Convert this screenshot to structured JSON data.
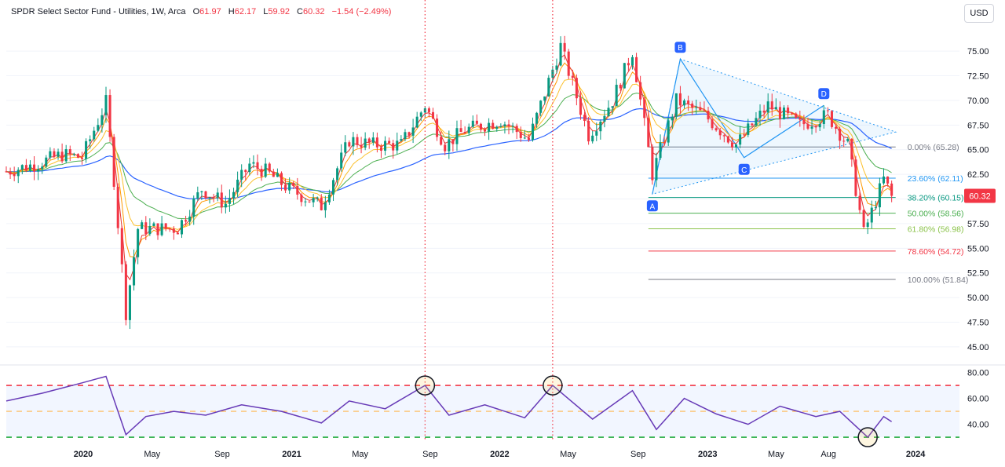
{
  "header": {
    "title": "SPDR Select Sector Fund - Utilities, 1W, Arca",
    "o_label": "O",
    "o_value": "61.97",
    "h_label": "H",
    "h_value": "62.17",
    "l_label": "L",
    "l_value": "59.92",
    "c_label": "C",
    "c_value": "60.32",
    "change": "−1.54 (−2.49%)"
  },
  "currency_button": "USD",
  "last_price_tag": "60.32",
  "colors": {
    "up": "#089981",
    "down": "#f23645",
    "ema": "#2962ff",
    "rsi": "#673ab7",
    "fib_hi": "#2196f3"
  },
  "chart_data": [
    {
      "type": "candlestick",
      "title": "SPDR Select Sector Fund - Utilities, 1W, Arca",
      "y_ticks": [
        "75.00",
        "72.50",
        "70.00",
        "67.50",
        "65.00",
        "62.50",
        "60.00",
        "57.50",
        "55.00",
        "52.50",
        "50.00",
        "47.50",
        "45.00"
      ],
      "ylim": [
        43.4,
        77.8
      ],
      "x_ticks": [
        "2020",
        "May",
        "Sep",
        "2021",
        "May",
        "Sep",
        "2022",
        "May",
        "Sep",
        "2023",
        "May",
        "Aug",
        "2024"
      ],
      "xlim": [
        "2019-08-19",
        "2024-03-18"
      ],
      "close_path": [
        [
          "2019-08-19",
          62.8
        ],
        [
          "2019-10-07",
          63.5
        ],
        [
          "2019-11-25",
          64.5
        ],
        [
          "2019-12-30",
          64.2
        ],
        [
          "2020-02-10",
          69.8
        ],
        [
          "2020-02-24",
          62.0
        ],
        [
          "2020-03-16",
          48.5
        ],
        [
          "2020-04-06",
          57.0
        ],
        [
          "2020-05-18",
          57.0
        ],
        [
          "2020-06-15",
          57.0
        ],
        [
          "2020-07-27",
          61.0
        ],
        [
          "2020-09-07",
          59.5
        ],
        [
          "2020-10-19",
          63.5
        ],
        [
          "2020-11-16",
          62.8
        ],
        [
          "2020-12-28",
          61.0
        ],
        [
          "2021-02-22",
          59.3
        ],
        [
          "2021-04-12",
          66.0
        ],
        [
          "2021-05-24",
          65.5
        ],
        [
          "2021-07-12",
          65.5
        ],
        [
          "2021-08-23",
          69.5
        ],
        [
          "2021-09-27",
          65.5
        ],
        [
          "2021-11-01",
          67.0
        ],
        [
          "2022-01-03",
          68.0
        ],
        [
          "2022-02-21",
          66.0
        ],
        [
          "2022-04-18",
          75.5
        ],
        [
          "2022-06-06",
          66.5
        ],
        [
          "2022-07-18",
          70.0
        ],
        [
          "2022-08-22",
          75.0
        ],
        [
          "2022-09-26",
          62.5
        ],
        [
          "2022-11-07",
          70.0
        ],
        [
          "2022-12-26",
          68.5
        ],
        [
          "2023-02-20",
          65.5
        ],
        [
          "2023-04-17",
          69.5
        ],
        [
          "2023-06-12",
          67.5
        ],
        [
          "2023-07-31",
          68.5
        ],
        [
          "2023-09-04",
          65.5
        ],
        [
          "2023-10-02",
          56.5
        ],
        [
          "2023-11-06",
          62.0
        ],
        [
          "2023-11-20",
          60.32
        ]
      ],
      "fib_levels": [
        {
          "label": "0.00% (65.28)",
          "value": 65.28,
          "color": "#787b86"
        },
        {
          "label": "23.60% (62.11)",
          "value": 62.11,
          "color": "#2196f3"
        },
        {
          "label": "38.20% (60.15)",
          "value": 60.15,
          "color": "#089981"
        },
        {
          "label": "50.00% (58.56)",
          "value": 58.56,
          "color": "#4caf50"
        },
        {
          "label": "61.80% (56.98)",
          "value": 56.98,
          "color": "#8bc34a"
        },
        {
          "label": "78.60% (54.72)",
          "value": 54.72,
          "color": "#f23645"
        },
        {
          "label": "100.00% (51.84)",
          "value": 51.84,
          "color": "#787b86"
        }
      ],
      "pattern_points": [
        {
          "label": "A",
          "date": "2022-09-26",
          "value": 60.5
        },
        {
          "label": "B",
          "date": "2022-11-14",
          "value": 74.2
        },
        {
          "label": "C",
          "date": "2023-03-06",
          "value": 64.2
        },
        {
          "label": "D",
          "date": "2023-07-24",
          "value": 69.5
        }
      ]
    },
    {
      "type": "line",
      "y_ticks": [
        "80.00",
        "60.00",
        "40.00"
      ],
      "ylim": [
        27,
        84
      ],
      "levels": [
        70,
        50,
        30
      ],
      "highlighted_points": [
        "2021-08-23",
        "2022-04-04",
        "2023-10-09"
      ],
      "rsi_path": [
        [
          "2019-08-19",
          58
        ],
        [
          "2019-10-21",
          64
        ],
        [
          "2019-12-30",
          72
        ],
        [
          "2020-02-10",
          77
        ],
        [
          "2020-03-16",
          32
        ],
        [
          "2020-04-20",
          46
        ],
        [
          "2020-06-08",
          50
        ],
        [
          "2020-08-03",
          47
        ],
        [
          "2020-10-05",
          55
        ],
        [
          "2020-12-14",
          50
        ],
        [
          "2021-02-22",
          41
        ],
        [
          "2021-04-12",
          58
        ],
        [
          "2021-06-14",
          52
        ],
        [
          "2021-08-23",
          70
        ],
        [
          "2021-10-04",
          47
        ],
        [
          "2021-12-06",
          55
        ],
        [
          "2022-02-14",
          45
        ],
        [
          "2022-04-04",
          70
        ],
        [
          "2022-06-13",
          44
        ],
        [
          "2022-08-22",
          66
        ],
        [
          "2022-10-03",
          36
        ],
        [
          "2022-11-21",
          60
        ],
        [
          "2023-01-16",
          48
        ],
        [
          "2023-03-13",
          40
        ],
        [
          "2023-05-08",
          54
        ],
        [
          "2023-07-10",
          46
        ],
        [
          "2023-08-21",
          50
        ],
        [
          "2023-10-09",
          30
        ],
        [
          "2023-11-06",
          46
        ],
        [
          "2023-11-20",
          42
        ]
      ]
    }
  ]
}
